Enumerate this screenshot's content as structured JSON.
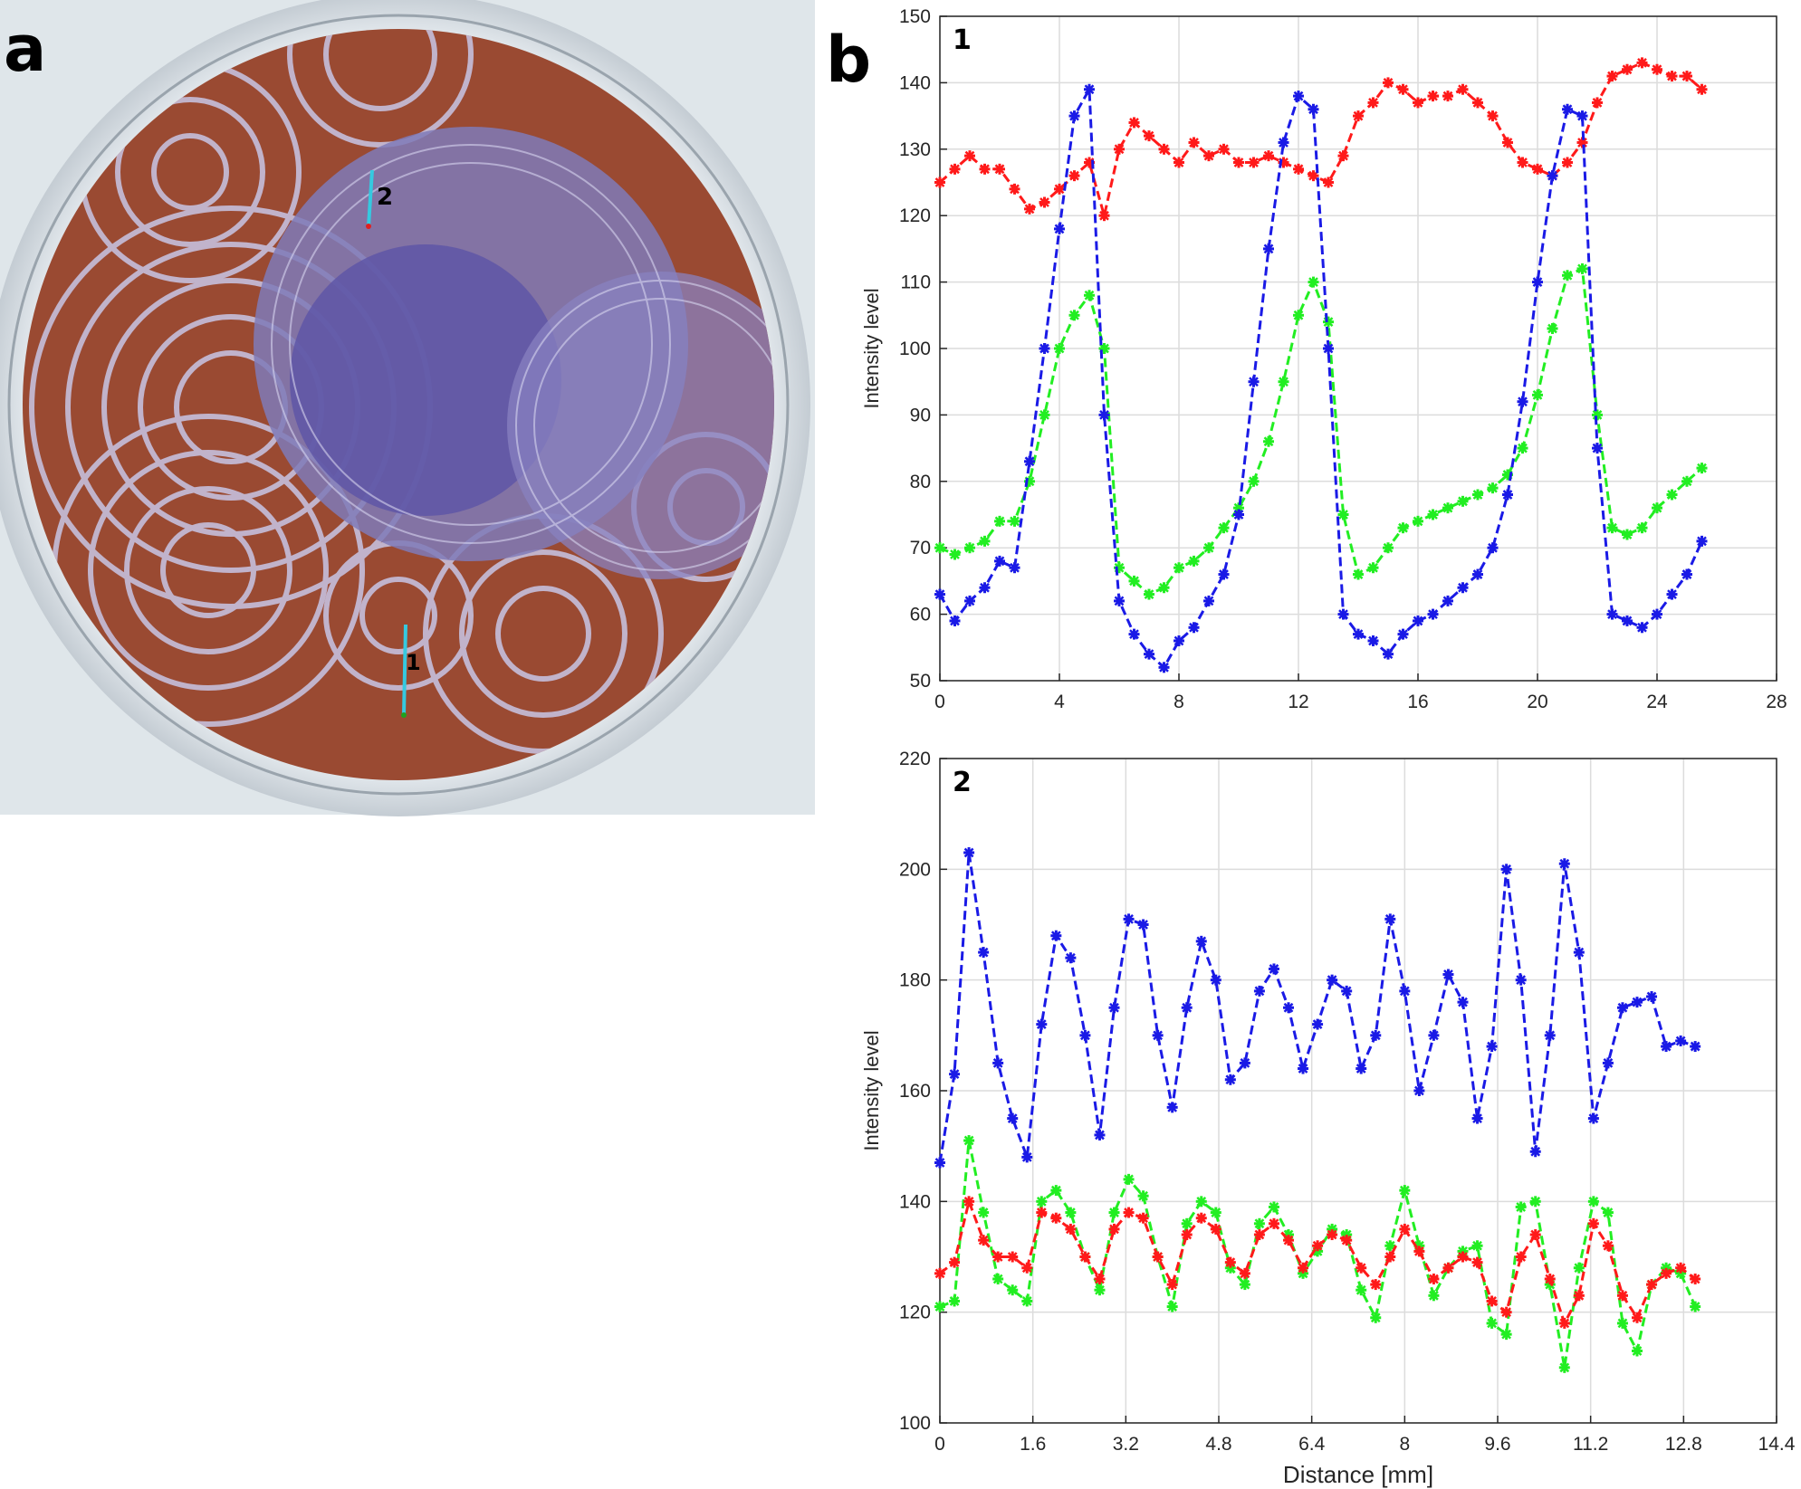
{
  "figure": {
    "panel_a_label": "a",
    "panel_b_label": "b",
    "photo": {
      "description_icon": "petri-dish-photo",
      "line_1_label": "1",
      "line_2_label": "2",
      "colors": {
        "orange": "#9a4a32",
        "purple": "#6a64a8",
        "rings": "#c8c6e6",
        "line": "#35c9e0"
      }
    }
  },
  "colors": {
    "red": "#ff1a1a",
    "green": "#22ee22",
    "blue": "#1a1ae6",
    "grid": "#dcdcdc"
  },
  "chart_data": [
    {
      "type": "line",
      "plot_number": "1",
      "title": "",
      "xlabel": "",
      "ylabel": "Intensity level",
      "xlim": [
        0,
        28
      ],
      "ylim": [
        50,
        150
      ],
      "xticks": [
        0,
        4,
        8,
        12,
        16,
        20,
        24,
        28
      ],
      "yticks": [
        50,
        60,
        70,
        80,
        90,
        100,
        110,
        120,
        130,
        140,
        150
      ],
      "grid": true,
      "series": [
        {
          "name": "red",
          "color": "#ff1a1a",
          "x": [
            0,
            0.5,
            1,
            1.5,
            2,
            2.5,
            3,
            3.5,
            4,
            4.5,
            5,
            5.5,
            6,
            6.5,
            7,
            7.5,
            8,
            8.5,
            9,
            9.5,
            10,
            10.5,
            11,
            11.5,
            12,
            12.5,
            13,
            13.5,
            14,
            14.5,
            15,
            15.5,
            16,
            16.5,
            17,
            17.5,
            18,
            18.5,
            19,
            19.5,
            20,
            20.5,
            21,
            21.5,
            22,
            22.5,
            23,
            23.5,
            24,
            24.5,
            25,
            25.5
          ],
          "values": [
            125,
            127,
            129,
            127,
            127,
            124,
            121,
            122,
            124,
            126,
            128,
            120,
            130,
            134,
            132,
            130,
            128,
            131,
            129,
            130,
            128,
            128,
            129,
            128,
            127,
            126,
            125,
            129,
            135,
            137,
            140,
            139,
            137,
            138,
            138,
            139,
            137,
            135,
            131,
            128,
            127,
            126,
            128,
            131,
            137,
            141,
            142,
            143,
            142,
            141,
            141,
            139
          ]
        },
        {
          "name": "green",
          "color": "#22ee22",
          "x": [
            0,
            0.5,
            1,
            1.5,
            2,
            2.5,
            3,
            3.5,
            4,
            4.5,
            5,
            5.5,
            6,
            6.5,
            7,
            7.5,
            8,
            8.5,
            9,
            9.5,
            10,
            10.5,
            11,
            11.5,
            12,
            12.5,
            13,
            13.5,
            14,
            14.5,
            15,
            15.5,
            16,
            16.5,
            17,
            17.5,
            18,
            18.5,
            19,
            19.5,
            20,
            20.5,
            21,
            21.5,
            22,
            22.5,
            23,
            23.5,
            24,
            24.5,
            25,
            25.5
          ],
          "values": [
            70,
            69,
            70,
            71,
            74,
            74,
            80,
            90,
            100,
            105,
            108,
            100,
            67,
            65,
            63,
            64,
            67,
            68,
            70,
            73,
            76,
            80,
            86,
            95,
            105,
            110,
            104,
            75,
            66,
            67,
            70,
            73,
            74,
            75,
            76,
            77,
            78,
            79,
            81,
            85,
            93,
            103,
            111,
            112,
            90,
            73,
            72,
            73,
            76,
            78,
            80,
            82
          ]
        },
        {
          "name": "blue",
          "color": "#1a1ae6",
          "x": [
            0,
            0.5,
            1,
            1.5,
            2,
            2.5,
            3,
            3.5,
            4,
            4.5,
            5,
            5.5,
            6,
            6.5,
            7,
            7.5,
            8,
            8.5,
            9,
            9.5,
            10,
            10.5,
            11,
            11.5,
            12,
            12.5,
            13,
            13.5,
            14,
            14.5,
            15,
            15.5,
            16,
            16.5,
            17,
            17.5,
            18,
            18.5,
            19,
            19.5,
            20,
            20.5,
            21,
            21.5,
            22,
            22.5,
            23,
            23.5,
            24,
            24.5,
            25,
            25.5
          ],
          "values": [
            63,
            59,
            62,
            64,
            68,
            67,
            83,
            100,
            118,
            135,
            139,
            90,
            62,
            57,
            54,
            52,
            56,
            58,
            62,
            66,
            75,
            95,
            115,
            131,
            138,
            136,
            100,
            60,
            57,
            56,
            54,
            57,
            59,
            60,
            62,
            64,
            66,
            70,
            78,
            92,
            110,
            126,
            136,
            135,
            85,
            60,
            59,
            58,
            60,
            63,
            66,
            71
          ]
        }
      ]
    },
    {
      "type": "line",
      "plot_number": "2",
      "title": "",
      "xlabel": "Distance [mm]",
      "ylabel": "Intensity level",
      "xlim": [
        0,
        14.4
      ],
      "ylim": [
        100,
        220
      ],
      "xticks": [
        0,
        1.6,
        3.2,
        4.8,
        6.4,
        8,
        9.6,
        11.2,
        12.8,
        14.4
      ],
      "yticks": [
        100,
        120,
        140,
        160,
        180,
        200,
        220
      ],
      "grid": true,
      "series": [
        {
          "name": "blue",
          "color": "#1a1ae6",
          "x": [
            0,
            0.25,
            0.5,
            0.75,
            1,
            1.25,
            1.5,
            1.75,
            2,
            2.25,
            2.5,
            2.75,
            3,
            3.25,
            3.5,
            3.75,
            4,
            4.25,
            4.5,
            4.75,
            5,
            5.25,
            5.5,
            5.75,
            6,
            6.25,
            6.5,
            6.75,
            7,
            7.25,
            7.5,
            7.75,
            8,
            8.25,
            8.5,
            8.75,
            9,
            9.25,
            9.5,
            9.75,
            10,
            10.25,
            10.5,
            10.75,
            11,
            11.25,
            11.5,
            11.75,
            12,
            12.25,
            12.5,
            12.75,
            13
          ],
          "values": [
            147,
            163,
            203,
            185,
            165,
            155,
            148,
            172,
            188,
            184,
            170,
            152,
            175,
            191,
            190,
            170,
            157,
            175,
            187,
            180,
            162,
            165,
            178,
            182,
            175,
            164,
            172,
            180,
            178,
            164,
            170,
            191,
            178,
            160,
            170,
            181,
            176,
            155,
            168,
            200,
            180,
            149,
            170,
            201,
            185,
            155,
            165,
            175,
            176,
            177,
            168,
            169,
            168
          ]
        },
        {
          "name": "green",
          "color": "#22ee22",
          "x": [
            0,
            0.25,
            0.5,
            0.75,
            1,
            1.25,
            1.5,
            1.75,
            2,
            2.25,
            2.5,
            2.75,
            3,
            3.25,
            3.5,
            3.75,
            4,
            4.25,
            4.5,
            4.75,
            5,
            5.25,
            5.5,
            5.75,
            6,
            6.25,
            6.5,
            6.75,
            7,
            7.25,
            7.5,
            7.75,
            8,
            8.25,
            8.5,
            8.75,
            9,
            9.25,
            9.5,
            9.75,
            10,
            10.25,
            10.5,
            10.75,
            11,
            11.25,
            11.5,
            11.75,
            12,
            12.25,
            12.5,
            12.75,
            13
          ],
          "values": [
            121,
            122,
            151,
            138,
            126,
            124,
            122,
            140,
            142,
            138,
            130,
            124,
            138,
            144,
            141,
            130,
            121,
            136,
            140,
            138,
            128,
            125,
            136,
            139,
            134,
            127,
            131,
            135,
            134,
            124,
            119,
            132,
            142,
            132,
            123,
            128,
            131,
            132,
            118,
            116,
            139,
            140,
            125,
            110,
            128,
            140,
            138,
            118,
            113,
            125,
            128,
            127,
            121
          ]
        },
        {
          "name": "red",
          "color": "#ff1a1a",
          "x": [
            0,
            0.25,
            0.5,
            0.75,
            1,
            1.25,
            1.5,
            1.75,
            2,
            2.25,
            2.5,
            2.75,
            3,
            3.25,
            3.5,
            3.75,
            4,
            4.25,
            4.5,
            4.75,
            5,
            5.25,
            5.5,
            5.75,
            6,
            6.25,
            6.5,
            6.75,
            7,
            7.25,
            7.5,
            7.75,
            8,
            8.25,
            8.5,
            8.75,
            9,
            9.25,
            9.5,
            9.75,
            10,
            10.25,
            10.5,
            10.75,
            11,
            11.25,
            11.5,
            11.75,
            12,
            12.25,
            12.5,
            12.75,
            13
          ],
          "values": [
            127,
            129,
            140,
            133,
            130,
            130,
            128,
            138,
            137,
            135,
            130,
            126,
            135,
            138,
            137,
            130,
            125,
            134,
            137,
            135,
            129,
            127,
            134,
            136,
            133,
            128,
            132,
            134,
            133,
            128,
            125,
            130,
            135,
            131,
            126,
            128,
            130,
            129,
            122,
            120,
            130,
            134,
            126,
            118,
            123,
            136,
            132,
            123,
            119,
            125,
            127,
            128,
            126
          ]
        }
      ]
    }
  ]
}
